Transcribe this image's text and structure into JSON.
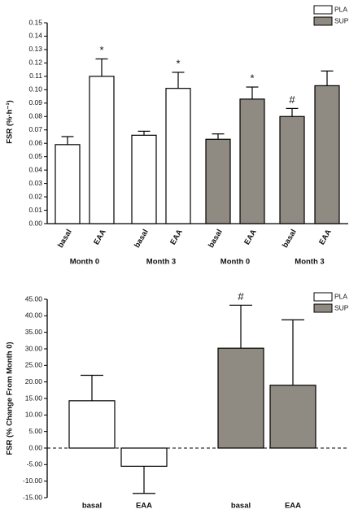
{
  "chart_data": [
    {
      "type": "bar",
      "y_label": "FSR (%·h⁻¹)",
      "categories": [
        "basal",
        "EAA",
        "basal",
        "EAA",
        "basal",
        "EAA",
        "basal",
        "EAA"
      ],
      "groups": [
        "Month 0",
        "Month 3",
        "Month 0",
        "Month 3"
      ],
      "series": [
        {
          "name": "PLA",
          "color": "#ffffff",
          "values": [
            0.059,
            0.11,
            0.066,
            0.101,
            null,
            null,
            null,
            null
          ],
          "errors": [
            0.006,
            0.013,
            0.003,
            0.012,
            null,
            null,
            null,
            null
          ]
        },
        {
          "name": "SUP",
          "color": "#8f8a82",
          "values": [
            null,
            null,
            null,
            null,
            0.063,
            0.093,
            0.08,
            0.103
          ],
          "errors": [
            null,
            null,
            null,
            null,
            0.004,
            0.009,
            0.006,
            0.011
          ]
        }
      ],
      "markers": [
        null,
        "*",
        null,
        "*",
        null,
        "*",
        "#",
        null
      ],
      "ylim": [
        0,
        0.15
      ],
      "yticks": [
        {
          "value": 0,
          "label": "0.00"
        },
        0.01,
        0.02,
        0.03,
        0.04,
        0.05,
        0.06,
        0.07,
        0.08,
        0.09,
        {
          "value": 0.1,
          "label": "0.10"
        },
        0.11,
        0.12,
        0.13,
        0.14,
        0.15
      ]
    },
    {
      "type": "bar",
      "y_label": "FSR (% Change From Month 0)",
      "categories": [
        "basal",
        "EAA",
        "basal",
        "EAA"
      ],
      "series": [
        {
          "name": "PLA",
          "color": "#ffffff",
          "values": [
            14.3,
            -5.5,
            null,
            null
          ],
          "errors": [
            7.7,
            8.2,
            null,
            null
          ]
        },
        {
          "name": "SUP",
          "color": "#8f8a82",
          "values": [
            null,
            null,
            30.2,
            19.0
          ],
          "errors": [
            null,
            null,
            13.0,
            19.8
          ]
        }
      ],
      "markers": [
        null,
        null,
        "#",
        null
      ],
      "ylim": [
        -15,
        45
      ],
      "yticks": [
        {
          "value": -15,
          "label": "-15.00"
        },
        {
          "value": -10,
          "label": "-10.00"
        },
        {
          "value": -5,
          "label": "-5.00"
        },
        {
          "value": 0,
          "label": "0.00"
        },
        {
          "value": 5,
          "label": "5.00"
        },
        {
          "value": 10,
          "label": "10.00"
        },
        {
          "value": 15,
          "label": "15.00"
        },
        {
          "value": 20,
          "label": "20.00"
        },
        {
          "value": 25,
          "label": "25.00"
        },
        {
          "value": 30,
          "label": "30.00"
        },
        {
          "value": 35,
          "label": "35.00"
        },
        {
          "value": 40,
          "label": "40.00"
        },
        {
          "value": 45,
          "label": "45.00"
        }
      ],
      "zero_line": "dashed"
    }
  ]
}
